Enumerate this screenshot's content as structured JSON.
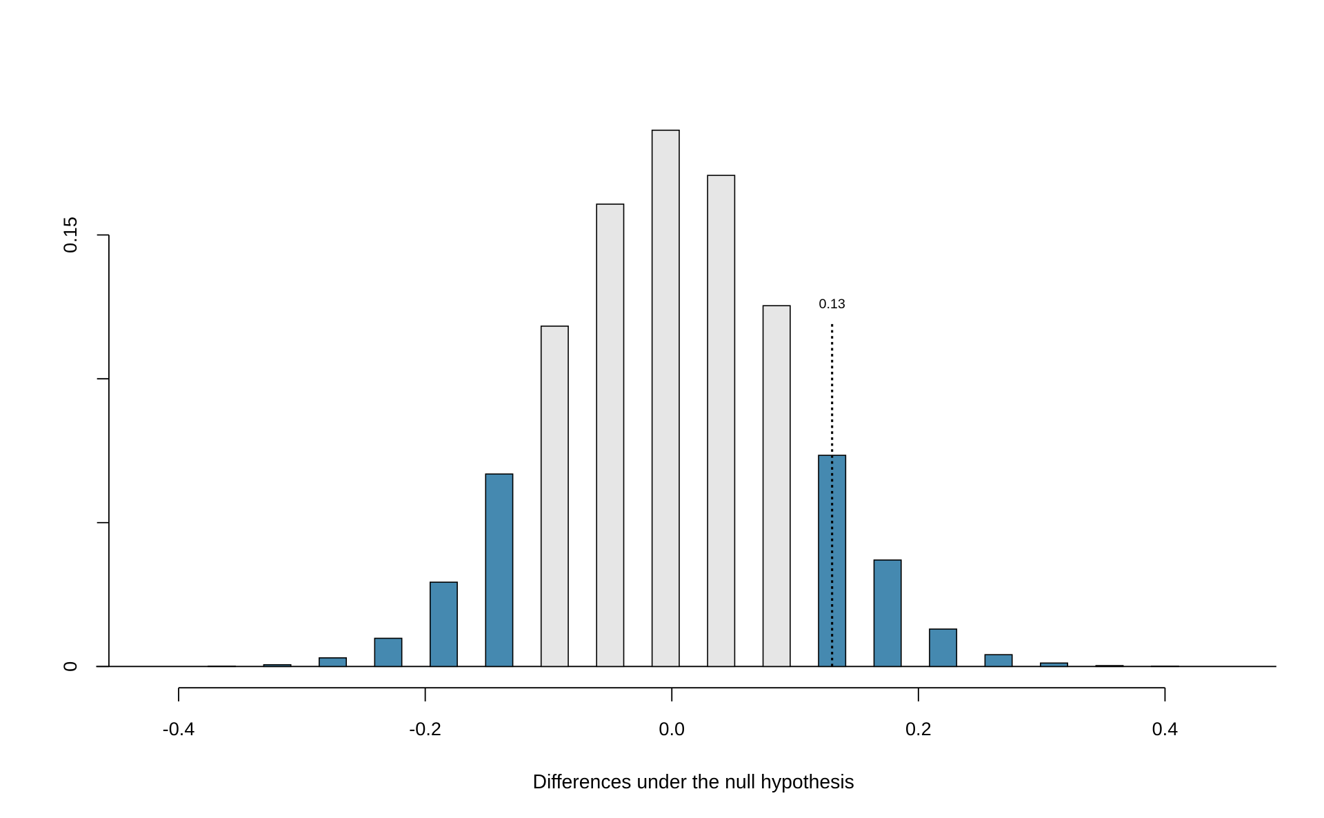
{
  "chart_data": {
    "type": "bar",
    "x_label": "Differences under the null hypothesis",
    "x": [
      -0.41,
      -0.365,
      -0.32,
      -0.275,
      -0.23,
      -0.185,
      -0.14,
      -0.095,
      -0.05,
      -0.005,
      0.04,
      0.085,
      0.13,
      0.175,
      0.22,
      0.265,
      0.31,
      0.355,
      0.4,
      0.445
    ],
    "values": [
      0,
      0.0001,
      0.0006,
      0.003,
      0.0098,
      0.0293,
      0.0669,
      0.1183,
      0.1607,
      0.1864,
      0.1707,
      0.1254,
      0.0734,
      0.037,
      0.013,
      0.0041,
      0.0012,
      0.0003,
      0.0001,
      0
    ],
    "colors": [
      "#4589b0",
      "#4589b0",
      "#4589b0",
      "#4589b0",
      "#4589b0",
      "#4589b0",
      "#4589b0",
      "#e6e6e6",
      "#e6e6e6",
      "#e6e6e6",
      "#e6e6e6",
      "#e6e6e6",
      "#4589b0",
      "#4589b0",
      "#4589b0",
      "#4589b0",
      "#4589b0",
      "#4589b0",
      "#4589b0",
      "#4589b0"
    ],
    "bar_width": 0.022,
    "xlim": [
      -0.4669,
      0.4903
    ],
    "xticks": [
      -0.4,
      -0.2,
      {
        "value": 0,
        "label": "0.0"
      },
      0.2,
      0.4
    ],
    "ylim": [
      0,
      0.2
    ],
    "yticks": [
      0,
      0.15
    ],
    "yticks_unlabeled": [
      0.05,
      0.1
    ],
    "annotation": {
      "x": 0.13,
      "y_end": 0.119,
      "style": "dotted"
    }
  }
}
